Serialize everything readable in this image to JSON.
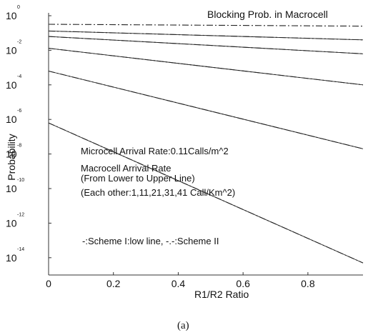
{
  "chart_data": {
    "type": "line",
    "title": "Blocking Prob. in Macrocell",
    "xlabel": "R1/R2 Ratio",
    "ylabel": "Probability",
    "caption": "(a)",
    "y_scale": "log",
    "xlim": [
      0,
      0.97
    ],
    "ylim": [
      1e-15,
      1
    ],
    "x_ticks": [
      "0",
      "0.2",
      "0.4",
      "0.6",
      "0.8"
    ],
    "y_ticks": [
      {
        "base": "10",
        "exp": "0"
      },
      {
        "base": "10",
        "exp": "-2"
      },
      {
        "base": "10",
        "exp": "-4"
      },
      {
        "base": "10",
        "exp": "-6"
      },
      {
        "base": "10",
        "exp": "-8"
      },
      {
        "base": "10",
        "exp": "-10"
      },
      {
        "base": "10",
        "exp": "-12"
      },
      {
        "base": "10",
        "exp": "-14"
      }
    ],
    "annotations": [
      "Microcell Arrival Rate:0.11Calls/m^2",
      "Macrocell Arrival Rate",
      "(From Lower to Upper Line)",
      "(Each other:1,11,21,31,41 Call/Km^2)",
      "-:Scheme I:low line, -.-:Scheme II"
    ],
    "series": [
      {
        "style": "solid",
        "x": [
          0,
          0.97
        ],
        "y": [
          6.3e-07,
          5e-15
        ]
      },
      {
        "style": "dashdot",
        "x": [
          0,
          0.97
        ],
        "y": [
          6.3e-07,
          5e-15
        ]
      },
      {
        "style": "solid",
        "x": [
          0,
          0.97
        ],
        "y": [
          0.00063,
          2e-08
        ]
      },
      {
        "style": "dashdot",
        "x": [
          0,
          0.97
        ],
        "y": [
          0.00063,
          2e-08
        ]
      },
      {
        "style": "solid",
        "x": [
          0,
          0.97
        ],
        "y": [
          0.013,
          0.0001
        ]
      },
      {
        "style": "dashdot",
        "x": [
          0,
          0.97
        ],
        "y": [
          0.013,
          0.0001
        ]
      },
      {
        "style": "solid",
        "x": [
          0,
          0.97
        ],
        "y": [
          0.063,
          0.0063
        ]
      },
      {
        "style": "dashdot",
        "x": [
          0,
          0.97
        ],
        "y": [
          0.063,
          0.0063
        ]
      },
      {
        "style": "solid",
        "x": [
          0,
          0.97
        ],
        "y": [
          0.13,
          0.04
        ]
      },
      {
        "style": "dashdot",
        "x": [
          0,
          0.97
        ],
        "y": [
          0.13,
          0.04
        ]
      },
      {
        "style": "dashdot",
        "x": [
          0,
          0.97
        ],
        "y": [
          0.32,
          0.25
        ]
      }
    ]
  }
}
